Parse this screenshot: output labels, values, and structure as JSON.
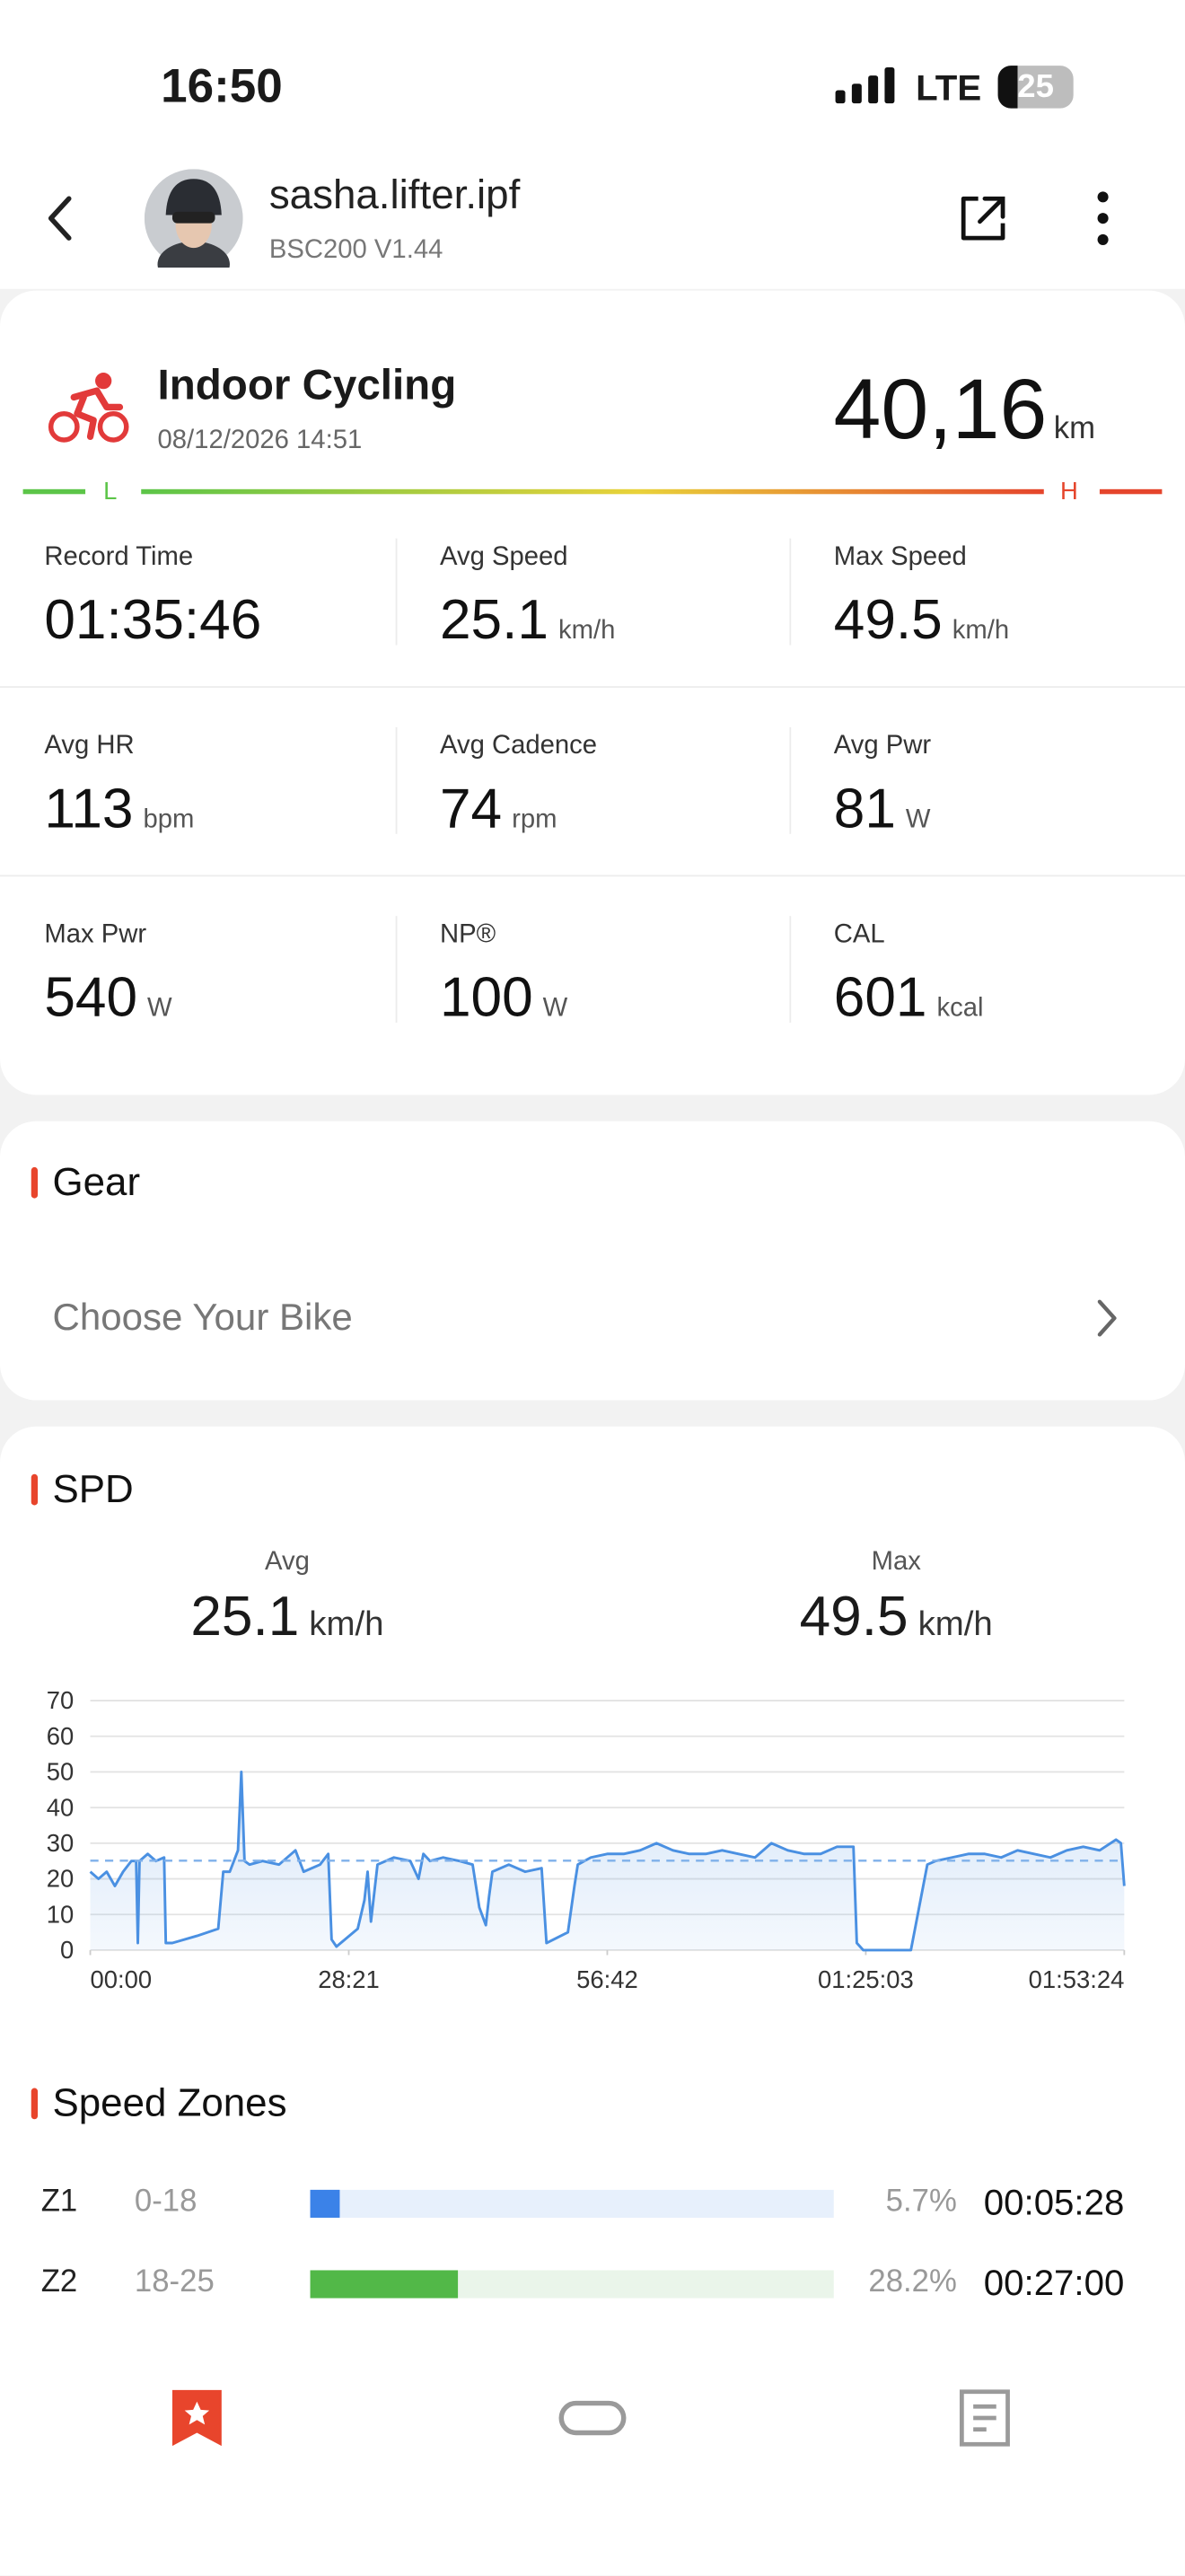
{
  "status_bar": {
    "time": "16:50",
    "network": "LTE",
    "battery": "25"
  },
  "header": {
    "username": "sasha.lifter.ipf",
    "device": "BSC200 V1.44"
  },
  "activity": {
    "title": "Indoor Cycling",
    "datetime": "08/12/2026 14:51",
    "distance": "40,16",
    "distance_unit": "km",
    "range_low": "L",
    "range_high": "H"
  },
  "stats": [
    {
      "label": "Record Time",
      "value": "01:35:46"
    },
    {
      "label": "Avg Speed",
      "value": "25.1",
      "unit": "km/h"
    },
    {
      "label": "Max Speed",
      "value": "49.5",
      "unit": "km/h"
    },
    {
      "label": "Avg HR",
      "value": "113",
      "unit": "bpm"
    },
    {
      "label": "Avg Cadence",
      "value": "74",
      "unit": "rpm"
    },
    {
      "label": "Avg Pwr",
      "value": "81",
      "unit": "W"
    },
    {
      "label": "Max Pwr",
      "value": "540",
      "unit": "W"
    },
    {
      "label": "NP®",
      "value": "100",
      "unit": "W"
    },
    {
      "label": "CAL",
      "value": "601",
      "unit": "kcal"
    }
  ],
  "gear": {
    "title": "Gear",
    "placeholder": "Choose Your Bike"
  },
  "spd": {
    "title": "SPD",
    "avg": {
      "label": "Avg",
      "value": "25.1",
      "unit": "km/h"
    },
    "max": {
      "label": "Max",
      "value": "49.5",
      "unit": "km/h"
    }
  },
  "chart_data": {
    "type": "line",
    "x": [
      0,
      54,
      108,
      162,
      216,
      270,
      302,
      313,
      324,
      378,
      432,
      486,
      497,
      540,
      702,
      842,
      875,
      918,
      972,
      994,
      1015,
      1048,
      1134,
      1242,
      1350,
      1404,
      1512,
      1566,
      1588,
      1620,
      1760,
      1804,
      1825,
      1847,
      1890,
      1998,
      2106,
      2160,
      2192,
      2236,
      2322,
      2430,
      2516,
      2560,
      2603,
      2624,
      2646,
      2754,
      2862,
      2970,
      3002,
      3143,
      3186,
      3208,
      3294,
      3402,
      3510,
      3618,
      3726,
      3834,
      3942,
      4050,
      4158,
      4266,
      4374,
      4482,
      4590,
      4698,
      4806,
      4914,
      5022,
      5044,
      5087,
      5400,
      5454,
      5508,
      5562,
      5670,
      5778,
      5886,
      5994,
      6102,
      6210,
      6318,
      6426,
      6534,
      6642,
      6750,
      6782,
      6804
    ],
    "series": [
      {
        "color": "#4a90e2",
        "values": [
          22,
          20,
          22,
          18,
          22,
          25,
          25,
          2,
          25,
          27,
          25,
          26,
          2,
          2,
          4,
          6,
          22,
          22,
          28,
          50,
          25,
          24,
          25,
          24,
          28,
          22,
          24,
          27,
          3,
          1,
          6,
          14,
          22,
          8,
          24,
          26,
          25,
          20,
          27,
          25,
          26,
          25,
          24,
          12,
          7,
          15,
          22,
          24,
          22,
          23,
          2,
          5,
          18,
          24,
          26,
          27,
          27,
          28,
          30,
          28,
          27,
          27,
          28,
          27,
          26,
          30,
          28,
          27,
          27,
          29,
          29,
          2,
          0,
          0,
          12,
          24,
          25,
          26,
          27,
          27,
          26,
          28,
          27,
          26,
          28,
          29,
          28,
          31,
          30,
          18
        ]
      }
    ],
    "reference_line": 25.1,
    "xlim": [
      0,
      6804
    ],
    "xticks": [
      {
        "value": 0,
        "label": "00:00"
      },
      {
        "value": 1701,
        "label": "28:21"
      },
      {
        "value": 3402,
        "label": "56:42"
      },
      {
        "value": 5103,
        "label": "01:25:03"
      },
      {
        "value": 6804,
        "label": "01:53:24"
      }
    ],
    "ylim": [
      0,
      70
    ],
    "yticks": [
      0,
      10,
      20,
      30,
      40,
      50,
      60,
      70
    ],
    "grid": true
  },
  "speed_zones": {
    "title": "Speed Zones",
    "rows": [
      {
        "zone": "Z1",
        "range": "0-18",
        "percent": 5.7,
        "percent_label": "5.7%",
        "time": "00:05:28",
        "color": "#3b82e8",
        "track_color": "#e7f0fc"
      },
      {
        "zone": "Z2",
        "range": "18-25",
        "percent": 28.2,
        "percent_label": "28.2%",
        "time": "00:27:00",
        "color": "#52b848",
        "track_color": "#eaf5ea"
      }
    ]
  }
}
